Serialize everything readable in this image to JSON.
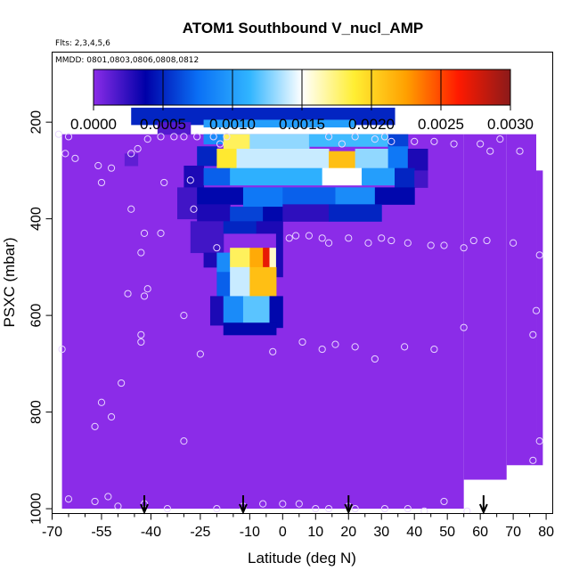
{
  "chart_data": {
    "type": "heatmap",
    "title": "ATOM1 Southbound V_nucl_AMP",
    "subtitle_flts": "Flts: 2,3,4,5,6",
    "subtitle_mmdd": "MMDD: 0801,0803,0806,0808,0812",
    "xlabel": "Latitude (deg N)",
    "ylabel": "PSXC (mbar)",
    "xlim": [
      -70,
      82
    ],
    "ylim": [
      1010,
      55
    ],
    "xticks": [
      -70,
      -55,
      -40,
      -25,
      -10,
      0,
      10,
      20,
      30,
      40,
      50,
      60,
      70,
      80
    ],
    "xtick_labels": [
      "-70",
      "-55",
      "-40",
      "-25",
      "-10",
      "0",
      "10",
      "20",
      "30",
      "40",
      "50",
      "60",
      "70",
      "80"
    ],
    "yticks": [
      200,
      400,
      600,
      800,
      1000
    ],
    "ytick_labels": [
      "200",
      "400",
      "600",
      "800",
      "1000"
    ],
    "colorbar": {
      "range": [
        0,
        0.003
      ],
      "ticks": [
        0,
        0.0005,
        0.001,
        0.0015,
        0.002,
        0.0025,
        0.003
      ],
      "tick_labels": [
        "0.0000",
        "0.0005",
        "0.0010",
        "0.0015",
        "0.0020",
        "0.0025",
        "0.0030"
      ],
      "colors": [
        "#8b2ce8",
        "#0000a8",
        "#0a6ff5",
        "#31b5ff",
        "#ffffff",
        "#ffee33",
        "#ffa000",
        "#ff1a00",
        "#8b1a1a"
      ]
    },
    "background_fill": {
      "value": 0.0,
      "regions": [
        {
          "x": [
            -67,
            -65
          ],
          "p": [
            225,
            1000
          ]
        },
        {
          "x": [
            -65,
            55
          ],
          "p": [
            225,
            1000
          ]
        },
        {
          "x": [
            55,
            68
          ],
          "p": [
            225,
            940
          ]
        },
        {
          "x": [
            68,
            77
          ],
          "p": [
            225,
            910
          ]
        },
        {
          "x": [
            77,
            79
          ],
          "p": [
            300,
            910
          ]
        }
      ]
    },
    "cells": [
      {
        "x": [
          -46,
          34
        ],
        "p": [
          170,
          205
        ],
        "v": 0.0005
      },
      {
        "x": [
          -24,
          22
        ],
        "p": [
          195,
          210
        ],
        "v": 0.001
      },
      {
        "x": [
          -38,
          -28
        ],
        "p": [
          200,
          225
        ],
        "v": 0.00015
      },
      {
        "x": [
          -24,
          34
        ],
        "p": [
          225,
          240
        ],
        "v": 0.0011
      },
      {
        "x": [
          -24,
          -18
        ],
        "p": [
          225,
          245
        ],
        "v": 0.0009
      },
      {
        "x": [
          -18,
          -10
        ],
        "p": [
          225,
          255
        ],
        "v": 0.0018
      },
      {
        "x": [
          -10,
          8
        ],
        "p": [
          225,
          255
        ],
        "v": 0.0013
      },
      {
        "x": [
          8,
          32
        ],
        "p": [
          225,
          250
        ],
        "v": 0.00115
      },
      {
        "x": [
          32,
          38
        ],
        "p": [
          225,
          260
        ],
        "v": 0.0006
      },
      {
        "x": [
          -26,
          -20
        ],
        "p": [
          250,
          290
        ],
        "v": 0.0005
      },
      {
        "x": [
          -20,
          -14
        ],
        "p": [
          255,
          295
        ],
        "v": 0.0019
      },
      {
        "x": [
          -14,
          14
        ],
        "p": [
          255,
          295
        ],
        "v": 0.0014
      },
      {
        "x": [
          14,
          22
        ],
        "p": [
          260,
          295
        ],
        "v": 0.0021
      },
      {
        "x": [
          22,
          32
        ],
        "p": [
          255,
          295
        ],
        "v": 0.0013
      },
      {
        "x": [
          32,
          38
        ],
        "p": [
          250,
          300
        ],
        "v": 0.0008
      },
      {
        "x": [
          38,
          44
        ],
        "p": [
          255,
          300
        ],
        "v": 0.0003
      },
      {
        "x": [
          -48,
          -44
        ],
        "p": [
          265,
          290
        ],
        "v": 0.00012
      },
      {
        "x": [
          -30,
          -24
        ],
        "p": [
          290,
          335
        ],
        "v": 0.0003
      },
      {
        "x": [
          -24,
          -16
        ],
        "p": [
          295,
          330
        ],
        "v": 0.0007
      },
      {
        "x": [
          -16,
          12
        ],
        "p": [
          295,
          330
        ],
        "v": 0.0011
      },
      {
        "x": [
          12,
          24
        ],
        "p": [
          295,
          330
        ],
        "v": 0.0015
      },
      {
        "x": [
          24,
          34
        ],
        "p": [
          295,
          330
        ],
        "v": 0.001
      },
      {
        "x": [
          34,
          40
        ],
        "p": [
          295,
          335
        ],
        "v": 0.0005
      },
      {
        "x": [
          40,
          44
        ],
        "p": [
          300,
          335
        ],
        "v": 0.0002
      },
      {
        "x": [
          -32,
          -26
        ],
        "p": [
          335,
          400
        ],
        "v": 0.0002
      },
      {
        "x": [
          -26,
          -12
        ],
        "p": [
          335,
          370
        ],
        "v": 0.0004
      },
      {
        "x": [
          -12,
          0
        ],
        "p": [
          335,
          375
        ],
        "v": 0.0008
      },
      {
        "x": [
          0,
          16
        ],
        "p": [
          335,
          370
        ],
        "v": 0.0007
      },
      {
        "x": [
          16,
          28
        ],
        "p": [
          335,
          370
        ],
        "v": 0.0009
      },
      {
        "x": [
          28,
          40
        ],
        "p": [
          335,
          370
        ],
        "v": 0.0004
      },
      {
        "x": [
          -26,
          -16
        ],
        "p": [
          370,
          405
        ],
        "v": 0.0003
      },
      {
        "x": [
          -16,
          -6
        ],
        "p": [
          375,
          405
        ],
        "v": 0.0006
      },
      {
        "x": [
          -6,
          0
        ],
        "p": [
          375,
          405
        ],
        "v": 0.0004
      },
      {
        "x": [
          0,
          14
        ],
        "p": [
          370,
          405
        ],
        "v": 0.00025
      },
      {
        "x": [
          14,
          30
        ],
        "p": [
          370,
          405
        ],
        "v": 0.0005
      },
      {
        "x": [
          -28,
          -18
        ],
        "p": [
          405,
          470
        ],
        "v": 0.0002
      },
      {
        "x": [
          -18,
          -8
        ],
        "p": [
          405,
          430
        ],
        "v": 0.0005
      },
      {
        "x": [
          -8,
          0
        ],
        "p": [
          405,
          430
        ],
        "v": 0.0003
      },
      {
        "x": [
          -24,
          -20
        ],
        "p": [
          470,
          500
        ],
        "v": 0.0003
      },
      {
        "x": [
          -20,
          -16
        ],
        "p": [
          470,
          510
        ],
        "v": 0.0009
      },
      {
        "x": [
          -16,
          -10
        ],
        "p": [
          460,
          500
        ],
        "v": 0.0018
      },
      {
        "x": [
          -10,
          -6
        ],
        "p": [
          460,
          500
        ],
        "v": 0.0022
      },
      {
        "x": [
          -6,
          -4
        ],
        "p": [
          460,
          500
        ],
        "v": 0.0027
      },
      {
        "x": [
          -4,
          -2
        ],
        "p": [
          460,
          500
        ],
        "v": 0.0016
      },
      {
        "x": [
          -2,
          0
        ],
        "p": [
          430,
          520
        ],
        "v": 0.0003
      },
      {
        "x": [
          -20,
          -16
        ],
        "p": [
          510,
          560
        ],
        "v": 0.0007
      },
      {
        "x": [
          -16,
          -10
        ],
        "p": [
          500,
          560
        ],
        "v": 0.0014
      },
      {
        "x": [
          -10,
          -2
        ],
        "p": [
          500,
          560
        ],
        "v": 0.0021
      },
      {
        "x": [
          -22,
          -18
        ],
        "p": [
          560,
          620
        ],
        "v": 0.0003
      },
      {
        "x": [
          -18,
          -12
        ],
        "p": [
          560,
          615
        ],
        "v": 0.0009
      },
      {
        "x": [
          -12,
          -4
        ],
        "p": [
          560,
          615
        ],
        "v": 0.0012
      },
      {
        "x": [
          -4,
          0
        ],
        "p": [
          560,
          625
        ],
        "v": 0.0004
      },
      {
        "x": [
          -18,
          -2
        ],
        "p": [
          615,
          640
        ],
        "v": 0.0004
      }
    ],
    "points": [
      [
        -68,
        225
      ],
      [
        -66,
        265
      ],
      [
        -63,
        275
      ],
      [
        -56,
        290
      ],
      [
        -52,
        295
      ],
      [
        -46,
        265
      ],
      [
        -44,
        255
      ],
      [
        -41,
        235
      ],
      [
        -37,
        230
      ],
      [
        -33,
        230
      ],
      [
        -30,
        230
      ],
      [
        -26,
        230
      ],
      [
        -21,
        230
      ],
      [
        -19,
        245
      ],
      [
        -17,
        230
      ],
      [
        14,
        230
      ],
      [
        18,
        245
      ],
      [
        22,
        230
      ],
      [
        28,
        235
      ],
      [
        31,
        230
      ],
      [
        33,
        240
      ],
      [
        40,
        240
      ],
      [
        46,
        240
      ],
      [
        52,
        245
      ],
      [
        60,
        245
      ],
      [
        63,
        260
      ],
      [
        66,
        235
      ],
      [
        72,
        260
      ],
      [
        -65,
        230
      ],
      [
        -55,
        325
      ],
      [
        -36,
        325
      ],
      [
        -28,
        320
      ],
      [
        -27,
        380
      ],
      [
        -46,
        380
      ],
      [
        -42,
        430
      ],
      [
        -37,
        430
      ],
      [
        -20,
        460
      ],
      [
        2,
        440
      ],
      [
        4,
        435
      ],
      [
        8,
        435
      ],
      [
        12,
        440
      ],
      [
        14,
        450
      ],
      [
        20,
        440
      ],
      [
        26,
        450
      ],
      [
        30,
        440
      ],
      [
        33,
        445
      ],
      [
        38,
        450
      ],
      [
        45,
        455
      ],
      [
        49,
        455
      ],
      [
        55,
        460
      ],
      [
        58,
        445
      ],
      [
        62,
        445
      ],
      [
        70,
        450
      ],
      [
        78,
        475
      ],
      [
        77,
        590
      ],
      [
        76,
        640
      ],
      [
        76,
        900
      ],
      [
        78,
        860
      ],
      [
        -43,
        470
      ],
      [
        -47,
        555
      ],
      [
        -43,
        640
      ],
      [
        -43,
        655
      ],
      [
        -41,
        545
      ],
      [
        -42,
        560
      ],
      [
        -30,
        600
      ],
      [
        -25,
        680
      ],
      [
        -3,
        675
      ],
      [
        6,
        655
      ],
      [
        12,
        670
      ],
      [
        16,
        660
      ],
      [
        22,
        665
      ],
      [
        28,
        690
      ],
      [
        37,
        665
      ],
      [
        46,
        670
      ],
      [
        55,
        625
      ],
      [
        -49,
        740
      ],
      [
        -55,
        780
      ],
      [
        -52,
        810
      ],
      [
        -57,
        830
      ],
      [
        -30,
        860
      ],
      [
        -53,
        975
      ],
      [
        -57,
        985
      ],
      [
        -50,
        995
      ],
      [
        -42,
        990
      ],
      [
        -35,
        1000
      ],
      [
        -20,
        1000
      ],
      [
        -12,
        995
      ],
      [
        -6,
        990
      ],
      [
        0,
        990
      ],
      [
        5,
        990
      ],
      [
        10,
        1000
      ],
      [
        14,
        1000
      ],
      [
        20,
        995
      ],
      [
        22,
        1000
      ],
      [
        31,
        1000
      ],
      [
        38,
        1000
      ],
      [
        43,
        1005
      ],
      [
        49,
        985
      ],
      [
        56,
        1005
      ],
      [
        -65,
        980
      ],
      [
        -67,
        670
      ]
    ],
    "arrows": [
      -42,
      -12,
      20,
      61
    ]
  }
}
